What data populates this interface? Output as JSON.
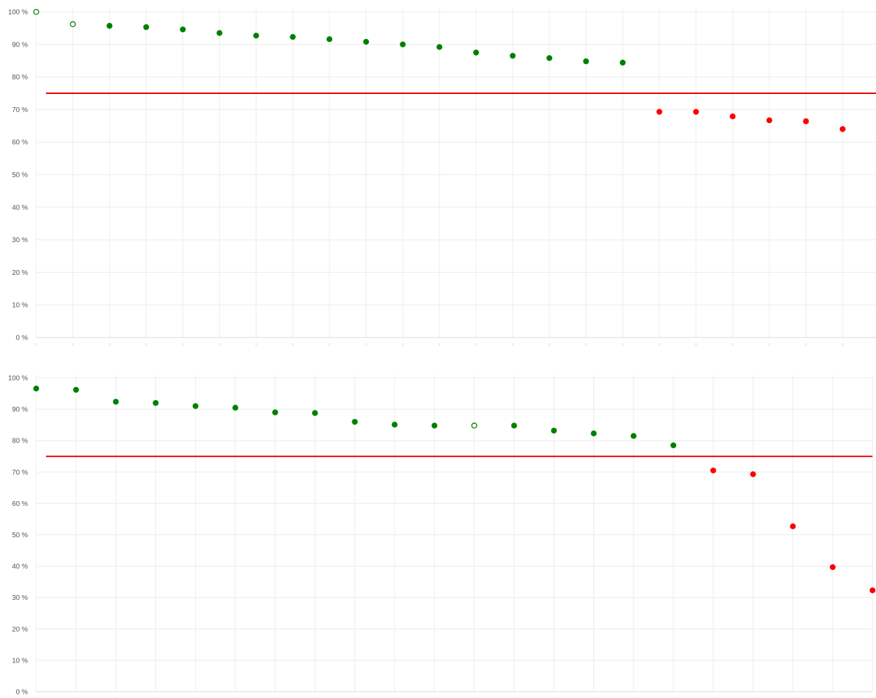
{
  "colors": {
    "pass": "#008000",
    "fail": "#ff0000",
    "threshold": "#e60000",
    "grid": "#ececec",
    "axis": "#d8d8d8",
    "text": "#555555"
  },
  "chart_data": [
    {
      "type": "scatter",
      "ylim": [
        0,
        100
      ],
      "ytick_labels": [
        "0 %",
        "10 %",
        "20 %",
        "30 %",
        "40 %",
        "50 %",
        "60 %",
        "70 %",
        "80 %",
        "90 %",
        "100 %"
      ],
      "threshold": 75,
      "grid": true,
      "points": [
        {
          "x": 1,
          "y": 100,
          "status": "pass",
          "hollow": true
        },
        {
          "x": 2,
          "y": 96.2,
          "status": "pass",
          "hollow": true
        },
        {
          "x": 3,
          "y": 95.7,
          "status": "pass"
        },
        {
          "x": 4,
          "y": 95.3,
          "status": "pass"
        },
        {
          "x": 5,
          "y": 94.6,
          "status": "pass"
        },
        {
          "x": 6,
          "y": 93.5,
          "status": "pass"
        },
        {
          "x": 7,
          "y": 92.7,
          "status": "pass"
        },
        {
          "x": 8,
          "y": 92.3,
          "status": "pass"
        },
        {
          "x": 9,
          "y": 91.6,
          "status": "pass"
        },
        {
          "x": 10,
          "y": 90.8,
          "status": "pass"
        },
        {
          "x": 11,
          "y": 90.0,
          "status": "pass"
        },
        {
          "x": 12,
          "y": 89.2,
          "status": "pass"
        },
        {
          "x": 13,
          "y": 87.5,
          "status": "pass"
        },
        {
          "x": 14,
          "y": 86.5,
          "status": "pass"
        },
        {
          "x": 15,
          "y": 85.8,
          "status": "pass"
        },
        {
          "x": 16,
          "y": 84.8,
          "status": "pass"
        },
        {
          "x": 17,
          "y": 84.4,
          "status": "pass"
        },
        {
          "x": 18,
          "y": 69.3,
          "status": "fail"
        },
        {
          "x": 19,
          "y": 69.3,
          "status": "fail"
        },
        {
          "x": 20,
          "y": 67.9,
          "status": "fail"
        },
        {
          "x": 21,
          "y": 66.7,
          "status": "fail"
        },
        {
          "x": 22,
          "y": 66.4,
          "status": "fail"
        },
        {
          "x": 23,
          "y": 64.0,
          "status": "fail"
        }
      ]
    },
    {
      "type": "scatter",
      "ylim": [
        0,
        100
      ],
      "ytick_labels": [
        "0 %",
        "10 %",
        "20 %",
        "30 %",
        "40 %",
        "50 %",
        "60 %",
        "70 %",
        "80 %",
        "90 %",
        "100 %"
      ],
      "threshold": 75,
      "grid": true,
      "points": [
        {
          "x": 1,
          "y": 96.6,
          "status": "pass"
        },
        {
          "x": 2,
          "y": 96.2,
          "status": "pass"
        },
        {
          "x": 3,
          "y": 92.4,
          "status": "pass"
        },
        {
          "x": 4,
          "y": 92.0,
          "status": "pass"
        },
        {
          "x": 5,
          "y": 91.0,
          "status": "pass"
        },
        {
          "x": 6,
          "y": 90.5,
          "status": "pass"
        },
        {
          "x": 7,
          "y": 89.0,
          "status": "pass"
        },
        {
          "x": 8,
          "y": 88.8,
          "status": "pass"
        },
        {
          "x": 9,
          "y": 86.0,
          "status": "pass"
        },
        {
          "x": 10,
          "y": 85.1,
          "status": "pass"
        },
        {
          "x": 11,
          "y": 84.8,
          "status": "pass"
        },
        {
          "x": 12,
          "y": 84.8,
          "status": "pass",
          "hollow": true
        },
        {
          "x": 13,
          "y": 84.8,
          "status": "pass"
        },
        {
          "x": 14,
          "y": 83.2,
          "status": "pass"
        },
        {
          "x": 15,
          "y": 82.3,
          "status": "pass"
        },
        {
          "x": 16,
          "y": 81.5,
          "status": "pass"
        },
        {
          "x": 17,
          "y": 78.5,
          "status": "pass"
        },
        {
          "x": 18,
          "y": 70.5,
          "status": "fail"
        },
        {
          "x": 19,
          "y": 69.3,
          "status": "fail"
        },
        {
          "x": 20,
          "y": 52.7,
          "status": "fail"
        },
        {
          "x": 21,
          "y": 39.7,
          "status": "fail"
        },
        {
          "x": 22,
          "y": 32.3,
          "status": "fail"
        }
      ]
    }
  ]
}
